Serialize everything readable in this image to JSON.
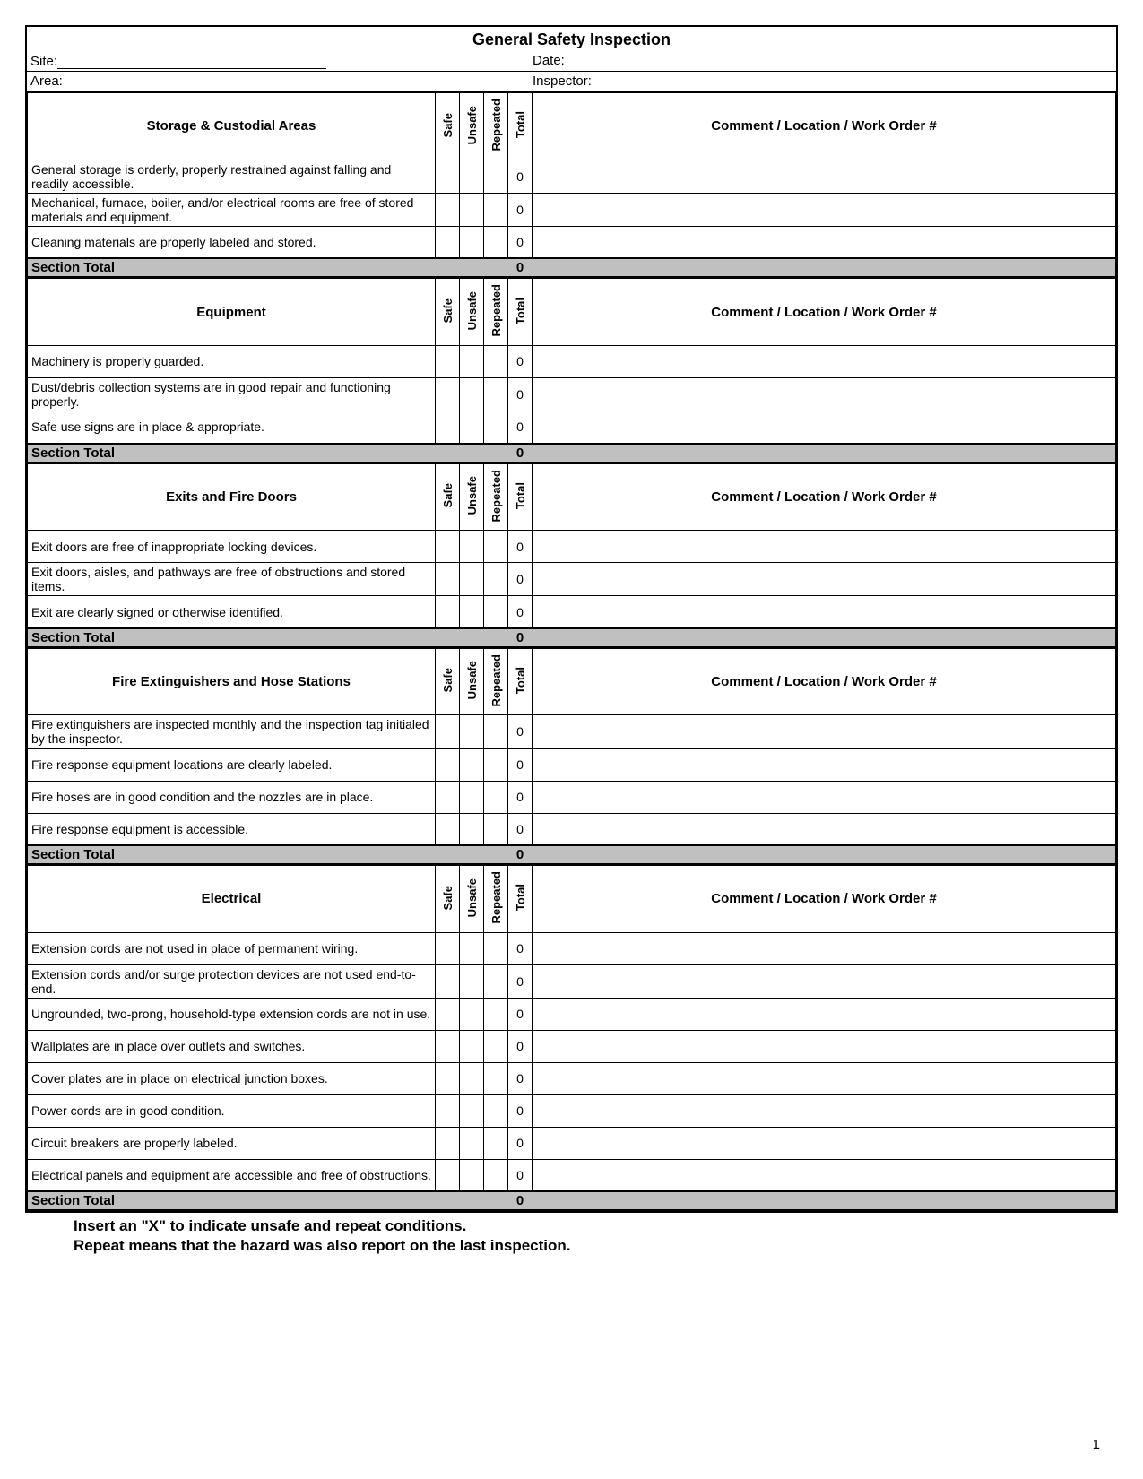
{
  "title": "General Safety Inspection",
  "meta": {
    "site_label": "Site:",
    "date_label": "Date:",
    "area_label": "Area:",
    "inspector_label": "Inspector:"
  },
  "column_headers": {
    "safe": "Safe",
    "unsafe": "Unsafe",
    "repeated": "Repeated",
    "total": "Total",
    "comment": "Comment / Location / Work Order #"
  },
  "section_total_label": "Section Total",
  "sections": [
    {
      "name": "Storage & Custodial Areas",
      "items": [
        {
          "text": "General storage is orderly, properly restrained against falling and readily accessible.",
          "total": "0"
        },
        {
          "text": "Mechanical, furnace, boiler, and/or electrical rooms are free of stored materials and equipment.",
          "total": "0"
        },
        {
          "text": "Cleaning materials are properly labeled and stored.",
          "total": "0"
        }
      ],
      "section_total": "0"
    },
    {
      "name": "Equipment",
      "items": [
        {
          "text": "Machinery is properly guarded.",
          "total": "0"
        },
        {
          "text": "Dust/debris collection systems are in good repair and functioning properly.",
          "total": "0"
        },
        {
          "text": "Safe use signs are in place & appropriate.",
          "total": "0"
        }
      ],
      "section_total": "0"
    },
    {
      "name": "Exits and Fire Doors",
      "items": [
        {
          "text": "Exit doors are free of inappropriate locking devices.",
          "total": "0"
        },
        {
          "text": "Exit doors, aisles, and pathways are free of obstructions and stored items.",
          "total": "0"
        },
        {
          "text": "Exit are clearly signed or otherwise identified.",
          "total": "0"
        }
      ],
      "section_total": "0"
    },
    {
      "name": "Fire Extinguishers and Hose Stations",
      "items": [
        {
          "text": "Fire extinguishers are inspected monthly and the inspection tag initialed by the inspector.",
          "total": "0"
        },
        {
          "text": "Fire response equipment locations are clearly labeled.",
          "total": "0"
        },
        {
          "text": "Fire hoses are in good condition and the nozzles are in place.",
          "total": "0"
        },
        {
          "text": "Fire response equipment is accessible.",
          "total": "0"
        }
      ],
      "section_total": "0"
    },
    {
      "name": "Electrical",
      "items": [
        {
          "text": "Extension cords are not used in place of permanent wiring.",
          "total": "0"
        },
        {
          "text": "Extension cords and/or surge protection devices are not used end-to-end.",
          "total": "0"
        },
        {
          "text": "Ungrounded, two-prong, household-type extension cords are not in use.",
          "total": "0"
        },
        {
          "text": "Wallplates are in place over outlets and switches.",
          "total": "0"
        },
        {
          "text": "Cover plates are in place on electrical junction boxes.",
          "total": "0"
        },
        {
          "text": "Power cords are in good condition.",
          "total": "0"
        },
        {
          "text": "Circuit breakers are properly labeled.",
          "total": "0"
        },
        {
          "text": "Electrical panels and equipment are accessible and free of obstructions.",
          "total": "0"
        }
      ],
      "section_total": "0"
    }
  ],
  "footer": {
    "line1": "Insert an \"X\" to indicate unsafe and repeat conditions.",
    "line2": "Repeat means that the hazard was also report on the last inspection."
  },
  "page_number": "1"
}
